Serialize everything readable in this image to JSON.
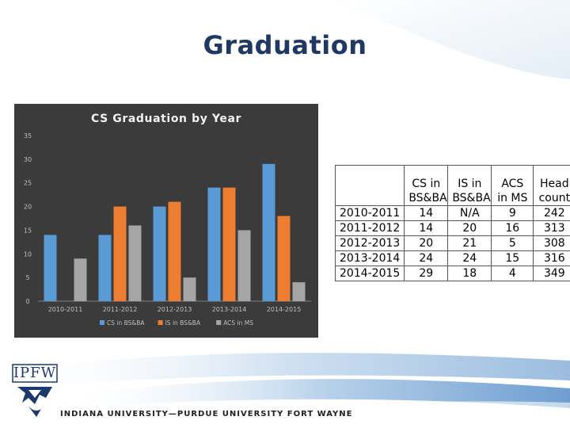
{
  "slide": {
    "title": "Graduation",
    "footer": "INDIANA UNIVERSITY—PURDUE UNIVERSITY FORT WAYNE",
    "logo_text": "IPFW"
  },
  "chart_data": {
    "type": "bar",
    "title": "CS Graduation by Year",
    "categories": [
      "2010-2011",
      "2011-2012",
      "2012-2013",
      "2013-2014",
      "2014-2015"
    ],
    "series": [
      {
        "name": "CS in BS&BA",
        "values": [
          14,
          14,
          20,
          24,
          29
        ],
        "color": "#5b9bd5"
      },
      {
        "name": "IS in BS&BA",
        "values": [
          null,
          20,
          21,
          24,
          18
        ],
        "color": "#ed7d31"
      },
      {
        "name": "ACS in MS",
        "values": [
          9,
          16,
          5,
          15,
          4
        ],
        "color": "#a5a5a5"
      }
    ],
    "ylim": [
      0,
      35
    ],
    "yticks": [
      0,
      5,
      10,
      15,
      20,
      25,
      30,
      35
    ],
    "legend": "bottom",
    "grid": false
  },
  "table": {
    "headers": [
      "CS in BS&BA",
      "IS in BS&BA",
      "ACS in MS",
      "Head count"
    ],
    "rows": [
      {
        "label": "2010-2011",
        "cells": [
          "14",
          "N/A",
          "9",
          "242"
        ]
      },
      {
        "label": "2011-2012",
        "cells": [
          "14",
          "20",
          "16",
          "313"
        ]
      },
      {
        "label": "2012-2013",
        "cells": [
          "20",
          "21",
          "5",
          "308"
        ]
      },
      {
        "label": "2013-2014",
        "cells": [
          "24",
          "24",
          "15",
          "316"
        ]
      },
      {
        "label": "2014-2015",
        "cells": [
          "29",
          "18",
          "4",
          "349"
        ]
      }
    ]
  },
  "colors": {
    "title": "#1f3864",
    "chart_bg": "#3b3b3b",
    "cs": "#5b9bd5",
    "is": "#ed7d31",
    "acs": "#a5a5a5"
  }
}
